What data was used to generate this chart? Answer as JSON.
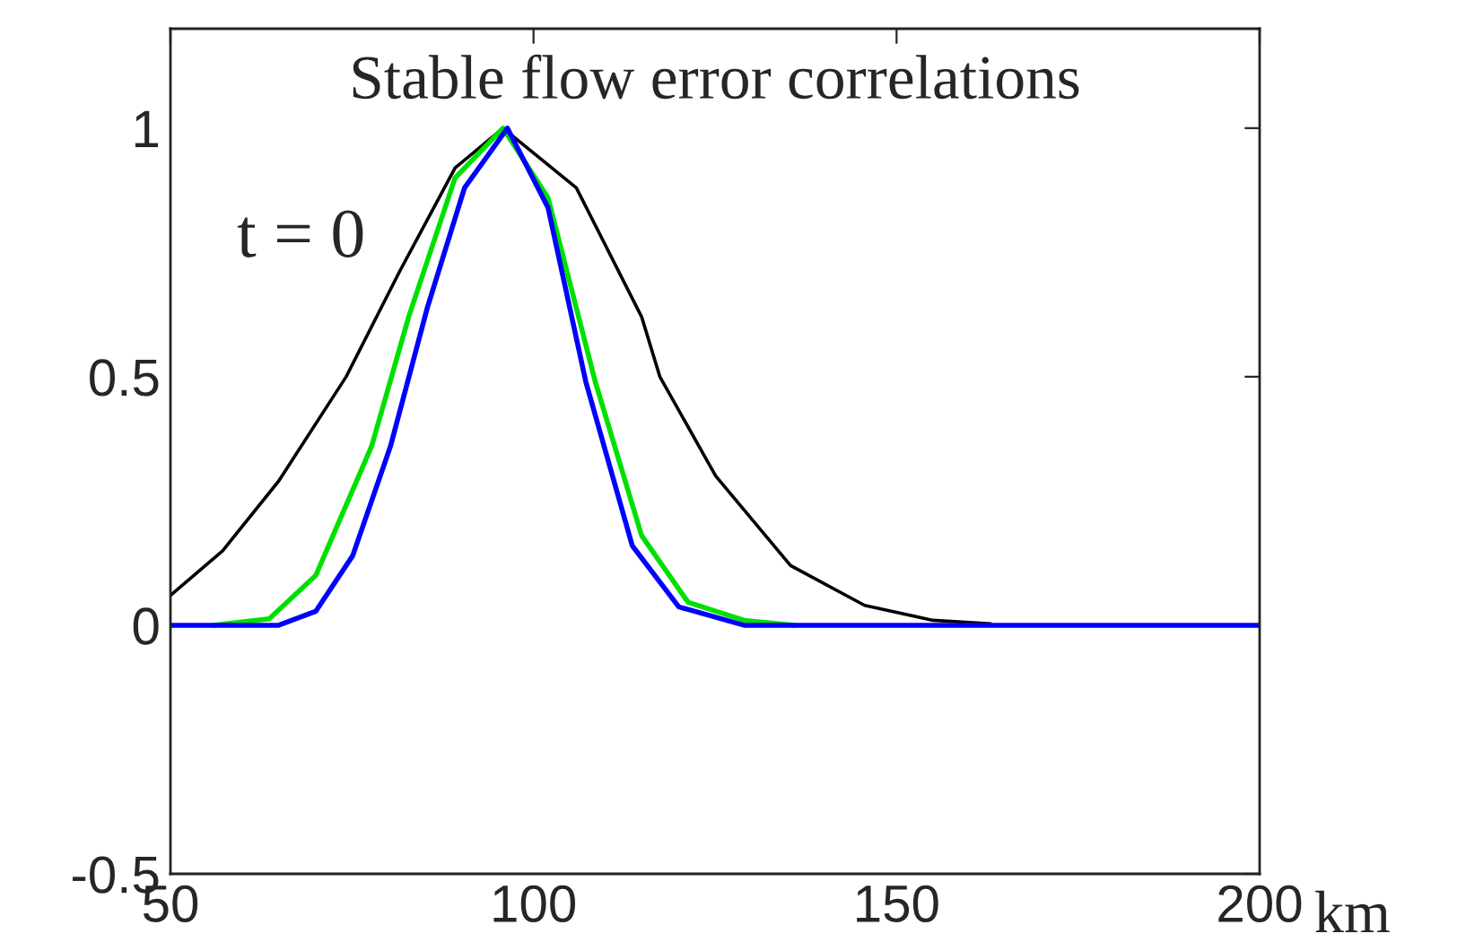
{
  "chart_data": {
    "type": "line",
    "title": "Stable flow error correlations",
    "xlabel": "km",
    "xlim": [
      50,
      200
    ],
    "ylim": [
      -0.5,
      1.2
    ],
    "xticks": [
      50,
      100,
      150,
      200
    ],
    "yticks": [
      -0.5,
      0,
      0.5,
      1
    ],
    "grid": false,
    "legend": false,
    "annotations": [
      "t = 0"
    ],
    "series": [
      {
        "color": "#000000",
        "x": [
          50,
          57.2,
          64.9,
          74.2,
          81.5,
          89.2,
          95.8,
          105.9,
          114.9,
          117.4,
          125.1,
          135.4,
          145.6,
          155,
          163
        ],
        "values": [
          0.06,
          0.15,
          0.29,
          0.5,
          0.71,
          0.92,
          1.0,
          0.88,
          0.62,
          0.5,
          0.3,
          0.12,
          0.04,
          0.01,
          0.003
        ]
      },
      {
        "color": "#00e000",
        "x": [
          56,
          63.6,
          70,
          77.7,
          82.8,
          89.2,
          95.8,
          102,
          108.5,
          114.9,
          121.3,
          129,
          136
        ],
        "values": [
          0,
          0.013,
          0.1,
          0.36,
          0.62,
          0.9,
          1.0,
          0.86,
          0.49,
          0.18,
          0.046,
          0.01,
          0
        ]
      },
      {
        "color": "#0000ff",
        "x": [
          50,
          64.9,
          70,
          75.1,
          80.3,
          85.4,
          90.5,
          96.4,
          102,
          107.2,
          113.6,
          120,
          129,
          200
        ],
        "values": [
          0,
          0,
          0.028,
          0.14,
          0.36,
          0.64,
          0.88,
          1.0,
          0.84,
          0.49,
          0.16,
          0.037,
          0,
          0
        ]
      }
    ]
  }
}
